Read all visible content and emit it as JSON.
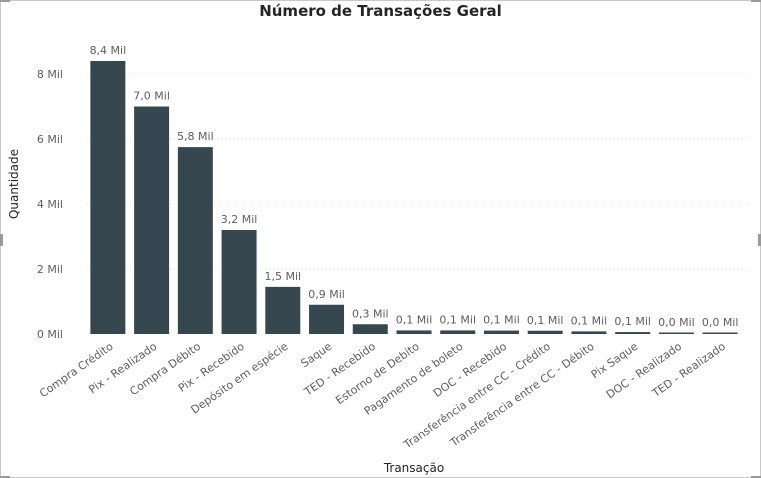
{
  "chart_data": {
    "type": "bar",
    "title": "Número de Transações Geral",
    "xlabel": "Transação",
    "ylabel": "Quantidade",
    "ylim": [
      0,
      8400
    ],
    "yticks": [
      {
        "value": 0,
        "label": "0 Mil"
      },
      {
        "value": 2000,
        "label": "2 Mil"
      },
      {
        "value": 4000,
        "label": "4 Mil"
      },
      {
        "value": 6000,
        "label": "6 Mil"
      },
      {
        "value": 8000,
        "label": "8 Mil"
      }
    ],
    "grid": true,
    "bar_color": "#37474f",
    "categories": [
      "Compra Crédito",
      "Pix - Realizado",
      "Compra Débito",
      "Pix - Recebido",
      "Depósito em espécie",
      "Saque",
      "TED - Recebido",
      "Estorno de Debito",
      "Pagamento de boleto",
      "DOC - Recebido",
      "Transferência entre CC - Crédito",
      "Transferência entre CC - Débito",
      "Pix Saque",
      "DOC - Realizado",
      "TED - Realizado"
    ],
    "values": [
      8400,
      7000,
      5750,
      3200,
      1450,
      900,
      300,
      110,
      110,
      105,
      100,
      80,
      60,
      30,
      25
    ],
    "data_labels": [
      "8,4 Mil",
      "7,0 Mil",
      "5,8 Mil",
      "3,2 Mil",
      "1,5 Mil",
      "0,9 Mil",
      "0,3 Mil",
      "0,1 Mil",
      "0,1 Mil",
      "0,1 Mil",
      "0,1 Mil",
      "0,1 Mil",
      "0,1 Mil",
      "0,0 Mil",
      "0,0 Mil"
    ]
  }
}
